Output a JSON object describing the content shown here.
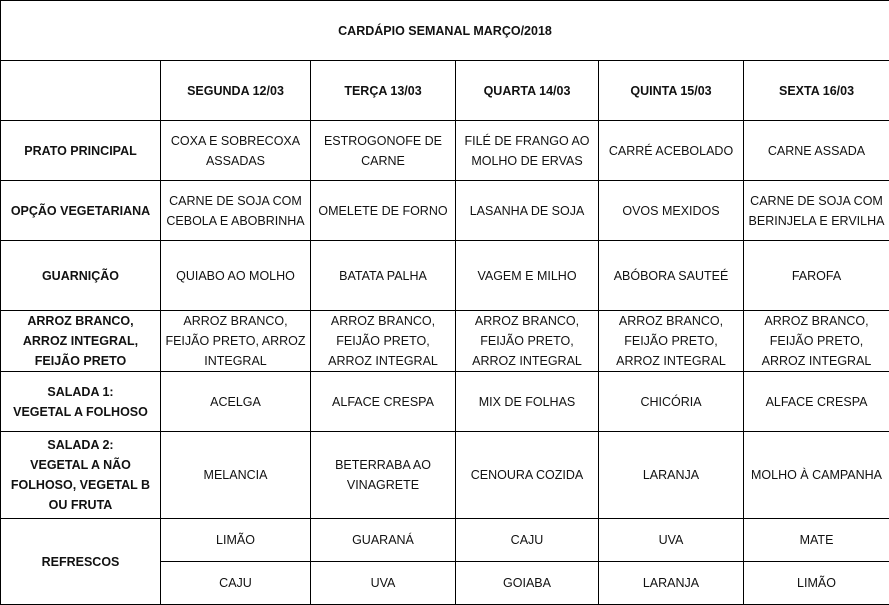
{
  "title": "CARDÁPIO SEMANAL MARÇO/2018",
  "days": [
    "SEGUNDA 12/03",
    "TERÇA 13/03",
    "QUARTA 14/03",
    "QUINTA 15/03",
    "SEXTA 16/03"
  ],
  "rows": [
    {
      "label": "PRATO PRINCIPAL",
      "cells": [
        "COXA E SOBRECOXA ASSADAS",
        "ESTROGONOFE DE CARNE",
        "FILÉ DE FRANGO AO MOLHO DE ERVAS",
        "CARRÉ ACEBOLADO",
        "CARNE ASSADA"
      ]
    },
    {
      "label": "OPÇÃO VEGETARIANA",
      "cells": [
        "CARNE DE SOJA COM CEBOLA E ABOBRINHA",
        "OMELETE DE FORNO",
        "LASANHA DE SOJA",
        "OVOS MEXIDOS",
        "CARNE DE SOJA COM BERINJELA E ERVILHA"
      ]
    },
    {
      "label": "GUARNIÇÃO",
      "cells": [
        "QUIABO AO MOLHO",
        "BATATA PALHA",
        "VAGEM E MILHO",
        "ABÓBORA SAUTEÉ",
        "FAROFA"
      ]
    },
    {
      "label": "ARROZ BRANCO, ARROZ INTEGRAL, FEIJÃO PRETO",
      "cells": [
        "ARROZ BRANCO, FEIJÃO PRETO, ARROZ INTEGRAL",
        "ARROZ BRANCO, FEIJÃO PRETO, ARROZ INTEGRAL",
        "ARROZ BRANCO, FEIJÃO PRETO, ARROZ INTEGRAL",
        "ARROZ BRANCO, FEIJÃO PRETO, ARROZ INTEGRAL",
        "ARROZ BRANCO, FEIJÃO PRETO, ARROZ INTEGRAL"
      ]
    },
    {
      "label": "SALADA 1:\nVEGETAL A FOLHOSO",
      "cells": [
        "ACELGA",
        "ALFACE CRESPA",
        "MIX DE FOLHAS",
        "CHICÓRIA",
        "ALFACE CRESPA"
      ]
    },
    {
      "label": "SALADA 2:\nVEGETAL A NÃO FOLHOSO, VEGETAL B OU FRUTA",
      "cells": [
        "MELANCIA",
        "BETERRABA AO VINAGRETE",
        "CENOURA COZIDA",
        "LARANJA",
        "MOLHO À CAMPANHA"
      ]
    }
  ],
  "refrescos": {
    "label": "REFRESCOS",
    "rows": [
      [
        "LIMÃO",
        "GUARANÁ",
        "CAJU",
        "UVA",
        "MATE"
      ],
      [
        "CAJU",
        "UVA",
        "GOIABA",
        "LARANJA",
        "LIMÃO"
      ]
    ]
  }
}
